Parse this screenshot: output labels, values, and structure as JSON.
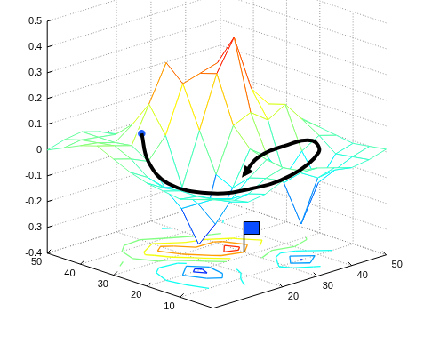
{
  "chart_data": {
    "type": "surface",
    "grid": true,
    "xlim": [
      0,
      50
    ],
    "ylim": [
      0,
      50
    ],
    "zlim": [
      -0.4,
      0.5
    ],
    "xticks": [
      20,
      30,
      40,
      50
    ],
    "yticks": [
      10,
      20,
      30,
      40,
      50
    ],
    "zticks": [
      -0.4,
      -0.3,
      -0.2,
      -0.1,
      0,
      0.1,
      0.2,
      0.3,
      0.4,
      0.5
    ],
    "x": [
      0,
      5,
      10,
      15,
      20,
      25,
      30,
      35,
      40,
      45,
      50
    ],
    "y": [
      0,
      5,
      10,
      15,
      20,
      25,
      30,
      35,
      40,
      45,
      50
    ],
    "z": [
      [
        0.02,
        0.0,
        -0.03,
        -0.02,
        0.01,
        0.03,
        0.02,
        0.0,
        -0.02,
        -0.01,
        0.01
      ],
      [
        0.0,
        -0.02,
        -0.05,
        -0.04,
        0.0,
        0.02,
        -0.02,
        -0.06,
        -0.05,
        -0.02,
        0.0
      ],
      [
        -0.02,
        -0.03,
        -0.06,
        -0.08,
        -0.02,
        0.03,
        -0.08,
        -0.26,
        -0.12,
        -0.03,
        -0.01
      ],
      [
        -0.01,
        -0.03,
        -0.1,
        -0.2,
        -0.08,
        0.05,
        0.0,
        -0.1,
        -0.02,
        0.02,
        0.0
      ],
      [
        0.0,
        -0.04,
        -0.14,
        -0.3,
        -0.05,
        0.12,
        0.15,
        0.1,
        0.14,
        0.06,
        0.01
      ],
      [
        0.02,
        -0.02,
        -0.08,
        -0.1,
        0.1,
        0.3,
        0.42,
        0.2,
        0.12,
        0.05,
        0.02
      ],
      [
        0.05,
        0.03,
        0.0,
        0.08,
        0.26,
        0.28,
        0.3,
        0.14,
        0.05,
        0.02,
        0.03
      ],
      [
        0.08,
        0.06,
        0.04,
        0.18,
        0.32,
        0.16,
        0.08,
        0.03,
        -0.02,
        0.0,
        0.03
      ],
      [
        0.06,
        0.05,
        0.03,
        0.08,
        0.12,
        0.04,
        -0.02,
        -0.05,
        -0.06,
        -0.02,
        0.02
      ],
      [
        0.03,
        0.04,
        0.03,
        0.02,
        0.0,
        -0.03,
        -0.06,
        -0.07,
        -0.05,
        -0.02,
        0.01
      ],
      [
        0.0,
        0.02,
        0.03,
        0.01,
        -0.02,
        -0.04,
        -0.05,
        -0.04,
        -0.02,
        0.0,
        0.01
      ]
    ],
    "contour_levels": [
      -0.25,
      -0.15,
      -0.05,
      0.05,
      0.15,
      0.25,
      0.35
    ],
    "path": {
      "x": [
        10,
        10,
        10,
        14,
        22,
        32,
        42,
        44,
        40,
        34,
        30
      ],
      "y": [
        32,
        30,
        24,
        16,
        12,
        10,
        12,
        16,
        20,
        22,
        22
      ],
      "z": [
        0.1,
        0.0,
        -0.06,
        -0.08,
        -0.08,
        -0.06,
        -0.02,
        0.0,
        -0.02,
        -0.05,
        -0.1
      ]
    },
    "goal": {
      "x": 30,
      "y": 22
    }
  }
}
